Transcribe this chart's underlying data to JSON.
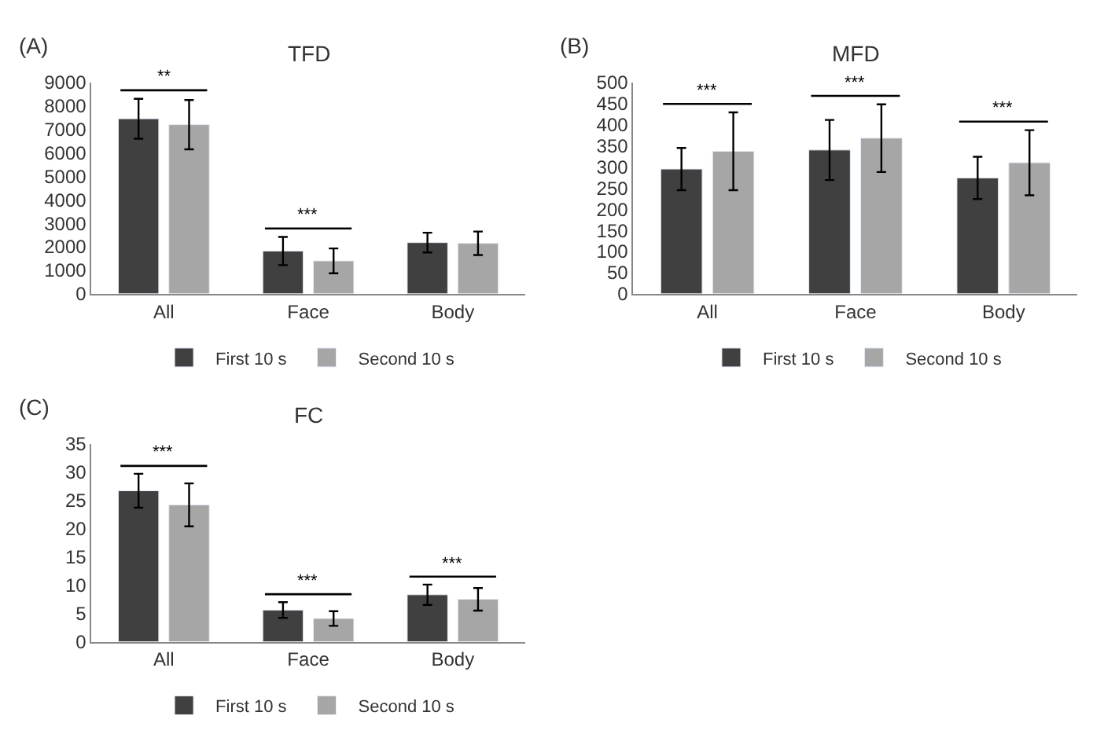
{
  "chart_data": [
    {
      "type": "bar",
      "title": "TFD",
      "categories": [
        "All",
        "Face",
        "Body"
      ],
      "series": [
        {
          "name": "First 10 s",
          "color": "#404040",
          "values": [
            7450,
            1820,
            2180
          ],
          "errors": [
            850,
            600,
            420
          ]
        },
        {
          "name": "Second 10 s",
          "color": "#a6a6a6",
          "values": [
            7200,
            1400,
            2150
          ],
          "errors": [
            1050,
            530,
            500
          ]
        }
      ],
      "ylim": [
        0,
        9000
      ],
      "yticks": [
        0,
        1000,
        2000,
        3000,
        4000,
        5000,
        6000,
        7000,
        8000,
        9000
      ],
      "annotations": [
        "(A)",
        "**",
        "***"
      ],
      "legend": "bottom",
      "grid": false
    },
    {
      "type": "bar",
      "title": "MFD",
      "categories": [
        "All",
        "Face",
        "Body"
      ],
      "series": [
        {
          "name": "First 10 s",
          "color": "#404040",
          "values": [
            295,
            340,
            274
          ],
          "errors": [
            50,
            71,
            50
          ]
        },
        {
          "name": "Second 10 s",
          "color": "#a6a6a6",
          "values": [
            337,
            368,
            310
          ],
          "errors": [
            92,
            80,
            77
          ]
        }
      ],
      "ylim": [
        0,
        500
      ],
      "yticks": [
        0,
        50,
        100,
        150,
        200,
        250,
        300,
        350,
        400,
        450,
        500
      ],
      "annotations": [
        "(B)",
        "***",
        "***",
        "***"
      ],
      "legend": "bottom",
      "grid": false
    },
    {
      "type": "bar",
      "title": "FC",
      "categories": [
        "All",
        "Face",
        "Body"
      ],
      "series": [
        {
          "name": "First 10 s",
          "color": "#404040",
          "values": [
            26.7,
            5.6,
            8.3
          ],
          "errors": [
            3.0,
            1.4,
            1.8
          ]
        },
        {
          "name": "Second 10 s",
          "color": "#a6a6a6",
          "values": [
            24.2,
            4.1,
            7.5
          ],
          "errors": [
            3.8,
            1.3,
            2.0
          ]
        }
      ],
      "ylim": [
        0,
        35
      ],
      "yticks": [
        0,
        5,
        10,
        15,
        20,
        25,
        30,
        35
      ],
      "annotations": [
        "(C)",
        "***",
        "***",
        "***"
      ],
      "legend": "bottom",
      "grid": false
    }
  ]
}
